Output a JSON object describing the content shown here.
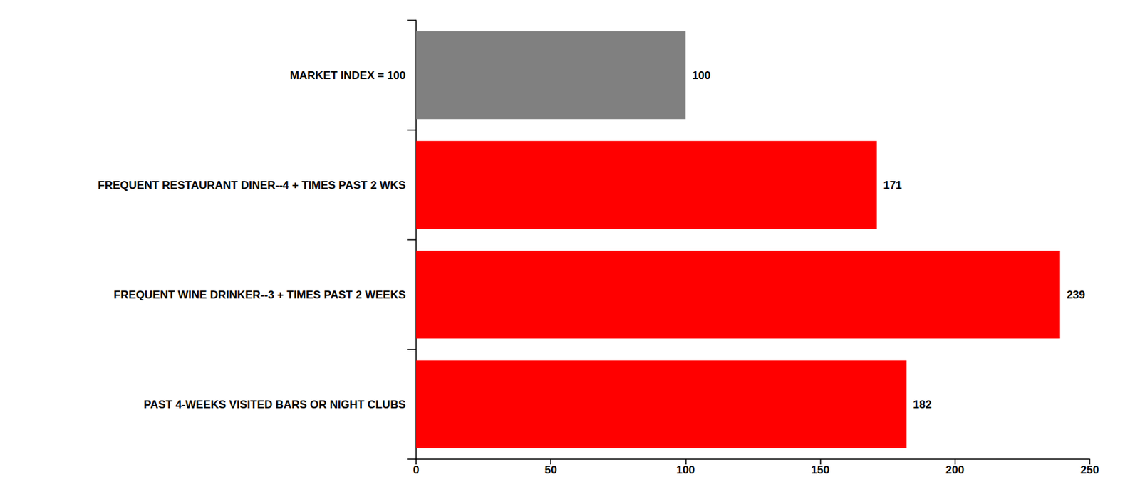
{
  "chart_data": {
    "type": "bar",
    "orientation": "horizontal",
    "categories": [
      "MARKET INDEX = 100",
      "FREQUENT RESTAURANT DINER--4 + TIMES PAST 2 WKS",
      "FREQUENT WINE DRINKER--3 + TIMES PAST 2 WEEKS",
      "PAST 4-WEEKS VISITED BARS OR NIGHT CLUBS"
    ],
    "values": [
      100,
      171,
      239,
      182
    ],
    "colors": [
      "#808080",
      "#ff0000",
      "#ff0000",
      "#ff0000"
    ],
    "xlim": [
      0,
      250
    ],
    "xticks": [
      0,
      50,
      100,
      150,
      200,
      250
    ],
    "grid": false,
    "data_labels": true
  }
}
